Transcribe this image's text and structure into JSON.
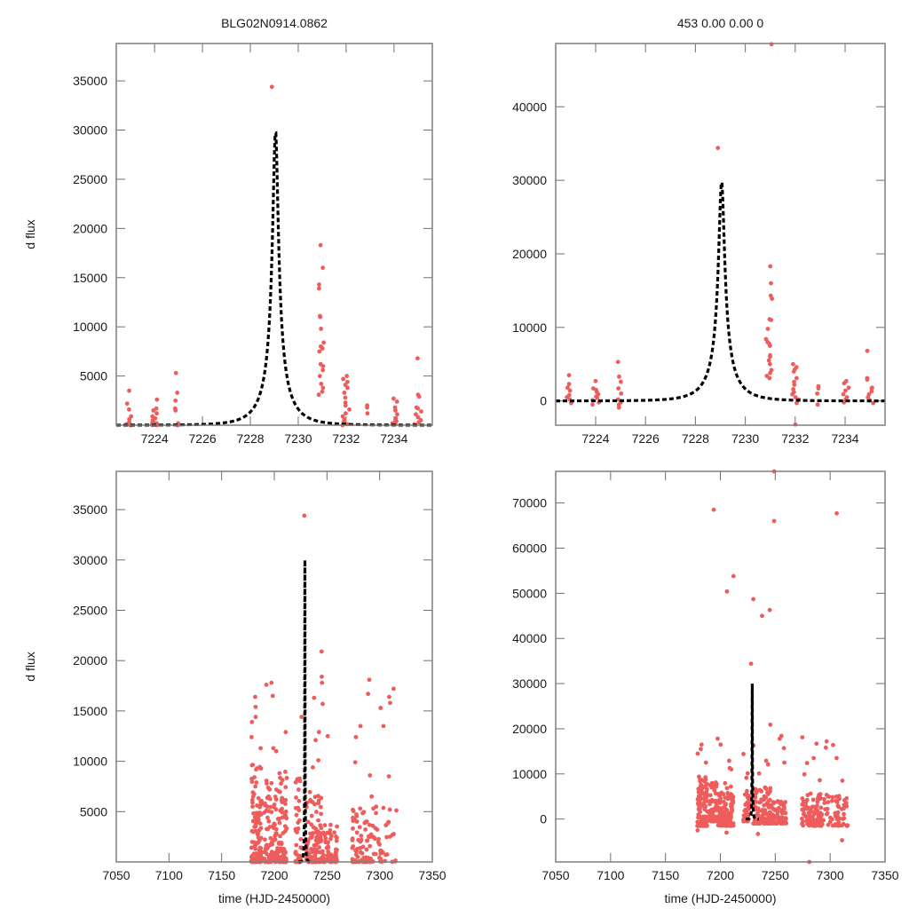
{
  "chart_data": [
    {
      "id": "top-left",
      "type": "scatter",
      "title": "BLG02N0914.0862",
      "xlabel": "",
      "ylabel": "d flux",
      "xlim": [
        7222.4,
        7235.6
      ],
      "ylim": [
        0,
        38800
      ],
      "xticks": [
        7224,
        7226,
        7228,
        7230,
        7232,
        7234
      ],
      "yticks": [
        5000,
        10000,
        15000,
        20000,
        25000,
        30000,
        35000
      ],
      "grid": false,
      "marker_color": "#ee5c5c",
      "model_color": "#000000",
      "model": {
        "t0": 7229.05,
        "peak": 30000,
        "baseline": 0,
        "tE": 1.15
      },
      "clusters": [
        {
          "x": 7222.9,
          "xspread": 0.12,
          "ys": [
            3500,
            2200,
            1600,
            900,
            600,
            300,
            100,
            0,
            50
          ]
        },
        {
          "x": 7224.0,
          "xspread": 0.15,
          "ys": [
            2600,
            1700,
            1500,
            1200,
            900,
            700,
            500,
            300,
            200,
            100,
            0,
            50
          ]
        },
        {
          "x": 7224.9,
          "xspread": 0.1,
          "ys": [
            5300,
            3300,
            2500,
            1700,
            1500,
            200,
            0
          ]
        },
        {
          "x": 7228.9,
          "xspread": 0.0,
          "ys": [
            34400
          ]
        },
        {
          "x": 7230.95,
          "xspread": 0.12,
          "ys": [
            18300,
            16000,
            14300,
            13900,
            11100,
            11000,
            9800,
            8400,
            8000,
            7800,
            7500,
            6200,
            6000,
            5600,
            5000,
            4200,
            3800,
            3400,
            3100
          ]
        },
        {
          "x": 7232.0,
          "xspread": 0.15,
          "ys": [
            5000,
            4700,
            4400,
            4100,
            3800,
            3300,
            2800,
            2300,
            2000,
            1600,
            1200,
            900,
            600,
            300,
            100,
            0
          ]
        },
        {
          "x": 7232.9,
          "xspread": 0.05,
          "ys": [
            2000,
            1800,
            1200
          ]
        },
        {
          "x": 7234.05,
          "xspread": 0.12,
          "ys": [
            2700,
            2400,
            1800,
            1500,
            1100,
            700,
            400,
            200,
            100
          ]
        },
        {
          "x": 7235.0,
          "xspread": 0.15,
          "ys": [
            6800,
            3100,
            2900,
            1800,
            1700,
            1400,
            1100,
            800,
            500,
            300,
            100
          ]
        }
      ]
    },
    {
      "id": "top-right",
      "type": "scatter",
      "title": "453  0.00  0.00  0",
      "xlabel": "",
      "ylabel": "",
      "xlim": [
        7222.4,
        7235.6
      ],
      "ylim": [
        -3300,
        48600
      ],
      "xticks": [
        7224,
        7226,
        7228,
        7230,
        7232,
        7234
      ],
      "yticks": [
        0,
        10000,
        20000,
        30000,
        40000
      ],
      "grid": false,
      "marker_color": "#ee5c5c",
      "model_color": "#000000",
      "model": {
        "t0": 7229.05,
        "peak": 30000,
        "baseline": 0,
        "tE": 1.15
      },
      "clusters": [
        {
          "x": 7222.9,
          "xspread": 0.12,
          "ys": [
            3500,
            2300,
            1800,
            1400,
            800,
            500,
            200,
            -300
          ]
        },
        {
          "x": 7224.0,
          "xspread": 0.15,
          "ys": [
            2700,
            1700,
            1500,
            1200,
            900,
            600,
            400,
            100,
            -200,
            -500
          ]
        },
        {
          "x": 7224.95,
          "xspread": 0.1,
          "ys": [
            5300,
            3300,
            2600,
            1700,
            1000,
            200,
            -200,
            -500,
            -900
          ]
        },
        {
          "x": 7228.9,
          "xspread": 0.0,
          "ys": [
            34400
          ]
        },
        {
          "x": 7231.05,
          "xspread": 0.0,
          "ys": [
            48500
          ]
        },
        {
          "x": 7230.95,
          "xspread": 0.12,
          "ys": [
            18300,
            16000,
            14300,
            13900,
            11100,
            11000,
            9800,
            8400,
            8000,
            7800,
            7500,
            6200,
            6000,
            5500,
            5000,
            4200,
            3800,
            3400,
            3100
          ]
        },
        {
          "x": 7232.0,
          "xspread": 0.15,
          "ys": [
            5000,
            4600,
            4300,
            4000,
            3100,
            2600,
            2200,
            1600,
            1200,
            900,
            500,
            200,
            -300,
            -3200
          ]
        },
        {
          "x": 7232.9,
          "xspread": 0.05,
          "ys": [
            2000,
            1700,
            1000,
            -500
          ]
        },
        {
          "x": 7234.05,
          "xspread": 0.12,
          "ys": [
            2700,
            2400,
            1800,
            1400,
            900,
            500,
            200,
            -200
          ]
        },
        {
          "x": 7235.0,
          "xspread": 0.15,
          "ys": [
            6800,
            3100,
            2900,
            1800,
            1700,
            1300,
            900,
            500,
            100,
            -300
          ]
        }
      ]
    },
    {
      "id": "bottom-left",
      "type": "scatter",
      "title": "",
      "xlabel": "time (HJD-2450000)",
      "ylabel": "d flux",
      "xlim": [
        7050,
        7350
      ],
      "ylim": [
        0,
        38800
      ],
      "xticks": [
        7050,
        7100,
        7150,
        7200,
        7250,
        7300,
        7350
      ],
      "yticks": [
        5000,
        10000,
        15000,
        20000,
        25000,
        30000,
        35000
      ],
      "grid": false,
      "marker_color": "#ee5c5c",
      "model_color": "#000000",
      "model": {
        "t0": 7229.05,
        "peak": 30000,
        "baseline": 0,
        "tE": 1.15
      },
      "seasons": [
        {
          "x0": 7178,
          "x1": 7188,
          "density": 110,
          "top": 9800,
          "outliers": [
            16400,
            15400,
            14400,
            13900,
            12400,
            11300,
            9600
          ]
        },
        {
          "x0": 7190,
          "x1": 7198,
          "density": 60,
          "top": 8500,
          "outliers": [
            17800,
            17600
          ]
        },
        {
          "x0": 7198,
          "x1": 7212,
          "density": 110,
          "top": 9000,
          "outliers": [
            16500,
            12900,
            11300,
            11000
          ]
        },
        {
          "x0": 7220,
          "x1": 7226,
          "density": 40,
          "top": 10500,
          "outliers": [
            14400
          ]
        },
        {
          "x0": 7230,
          "x1": 7245,
          "density": 90,
          "top": 7000,
          "outliers": [
            16300,
            12900,
            12100,
            10100,
            9400
          ]
        },
        {
          "x0": 7244,
          "x1": 7260,
          "density": 70,
          "top": 4000,
          "outliers": [
            20900,
            18400,
            17800,
            15700,
            12500
          ]
        },
        {
          "x0": 7274,
          "x1": 7292,
          "density": 70,
          "top": 6000,
          "outliers": [
            18100,
            16700,
            13500,
            12400,
            9900,
            8600
          ]
        },
        {
          "x0": 7292,
          "x1": 7316,
          "density": 40,
          "top": 5500,
          "outliers": [
            17200,
            16400,
            15800,
            15300,
            13500,
            8500,
            6500
          ]
        }
      ],
      "singles": [
        {
          "x": 7228.5,
          "y": 34400
        }
      ]
    },
    {
      "id": "bottom-right",
      "type": "scatter",
      "title": "",
      "xlabel": "time (HJD-2450000)",
      "ylabel": "",
      "xlim": [
        7050,
        7350
      ],
      "ylim": [
        -9500,
        77000
      ],
      "xticks": [
        7050,
        7100,
        7150,
        7200,
        7250,
        7300,
        7350
      ],
      "yticks": [
        0,
        10000,
        20000,
        30000,
        40000,
        50000,
        60000,
        70000
      ],
      "grid": false,
      "marker_color": "#ee5c5c",
      "model_color": "#000000",
      "model": {
        "t0": 7229.05,
        "peak": 30000,
        "baseline": 0,
        "tE": 1.15
      },
      "seasons": [
        {
          "x0": 7179,
          "x1": 7188,
          "density": 140,
          "low": -1500,
          "top": 9500,
          "outliers": [
            16500,
            15500,
            14500,
            12500,
            -2500
          ]
        },
        {
          "x0": 7190,
          "x1": 7198,
          "density": 70,
          "low": -500,
          "top": 8500,
          "outliers": [
            17800
          ]
        },
        {
          "x0": 7198,
          "x1": 7212,
          "density": 120,
          "low": -1500,
          "top": 8000,
          "outliers": [
            16500,
            12900,
            11300,
            11000,
            -3000
          ]
        },
        {
          "x0": 7221,
          "x1": 7226,
          "density": 40,
          "low": -500,
          "top": 10500,
          "outliers": [
            14400
          ]
        },
        {
          "x0": 7230,
          "x1": 7246,
          "density": 100,
          "low": -1000,
          "top": 7000,
          "outliers": [
            16300,
            12900,
            12100,
            10100,
            -3300
          ]
        },
        {
          "x0": 7244,
          "x1": 7260,
          "density": 80,
          "low": -1000,
          "top": 4000,
          "outliers": [
            20900,
            18400,
            17800,
            15700,
            12500
          ]
        },
        {
          "x0": 7274,
          "x1": 7292,
          "density": 90,
          "low": -1500,
          "top": 6000,
          "outliers": [
            18100,
            16700,
            13500,
            12400,
            9900,
            8600
          ]
        },
        {
          "x0": 7292,
          "x1": 7316,
          "density": 60,
          "low": -1500,
          "top": 5500,
          "outliers": [
            17200,
            16400,
            15800,
            13500,
            8500,
            -4700
          ]
        }
      ],
      "singles": [
        {
          "x": 7194,
          "y": 68500
        },
        {
          "x": 7206,
          "y": 50400
        },
        {
          "x": 7212,
          "y": 53800
        },
        {
          "x": 7228,
          "y": 34400
        },
        {
          "x": 7230,
          "y": 48700
        },
        {
          "x": 7238,
          "y": 45000
        },
        {
          "x": 7245,
          "y": 46300
        },
        {
          "x": 7249,
          "y": 66000
        },
        {
          "x": 7249,
          "y": 77000
        },
        {
          "x": 7306,
          "y": 67700
        },
        {
          "x": 7281,
          "y": -9500
        }
      ]
    }
  ]
}
